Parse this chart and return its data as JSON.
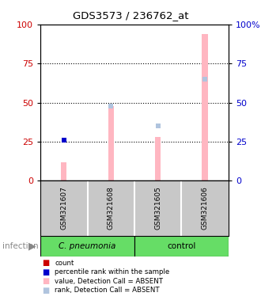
{
  "title": "GDS3573 / 236762_at",
  "samples": [
    "GSM321607",
    "GSM321608",
    "GSM321605",
    "GSM321606"
  ],
  "bar_values_absent": [
    12,
    48,
    28,
    94
  ],
  "rank_values_absent": [
    26,
    48,
    35,
    65
  ],
  "dot_color_rank": "#0000cc",
  "dot_color_rank_absent": "#b0c4de",
  "bar_color_absent": "#ffb6c1",
  "dot_color_count": "#cc0000",
  "dot_color_blue": "#0000cc",
  "ylim_left": [
    0,
    100
  ],
  "ylim_right": [
    0,
    100
  ],
  "yticks_left": [
    0,
    25,
    50,
    75,
    100
  ],
  "yticks_right": [
    0,
    25,
    50,
    75,
    100
  ],
  "ylabel_left_color": "#cc0000",
  "ylabel_right_color": "#0000cc",
  "legend_items": [
    {
      "label": "count",
      "color": "#cc0000",
      "marker": "s"
    },
    {
      "label": "percentile rank within the sample",
      "color": "#0000cc",
      "marker": "s"
    },
    {
      "label": "value, Detection Call = ABSENT",
      "color": "#ffb6c1",
      "marker": "s"
    },
    {
      "label": "rank, Detection Call = ABSENT",
      "color": "#b0c4de",
      "marker": "s"
    }
  ],
  "infection_label": "infection",
  "cpneumonia_label": "C. pneumonia",
  "control_label": "control",
  "background_color": "#ffffff",
  "sample_label_bg": "#c8c8c8",
  "green_color": "#66dd66"
}
